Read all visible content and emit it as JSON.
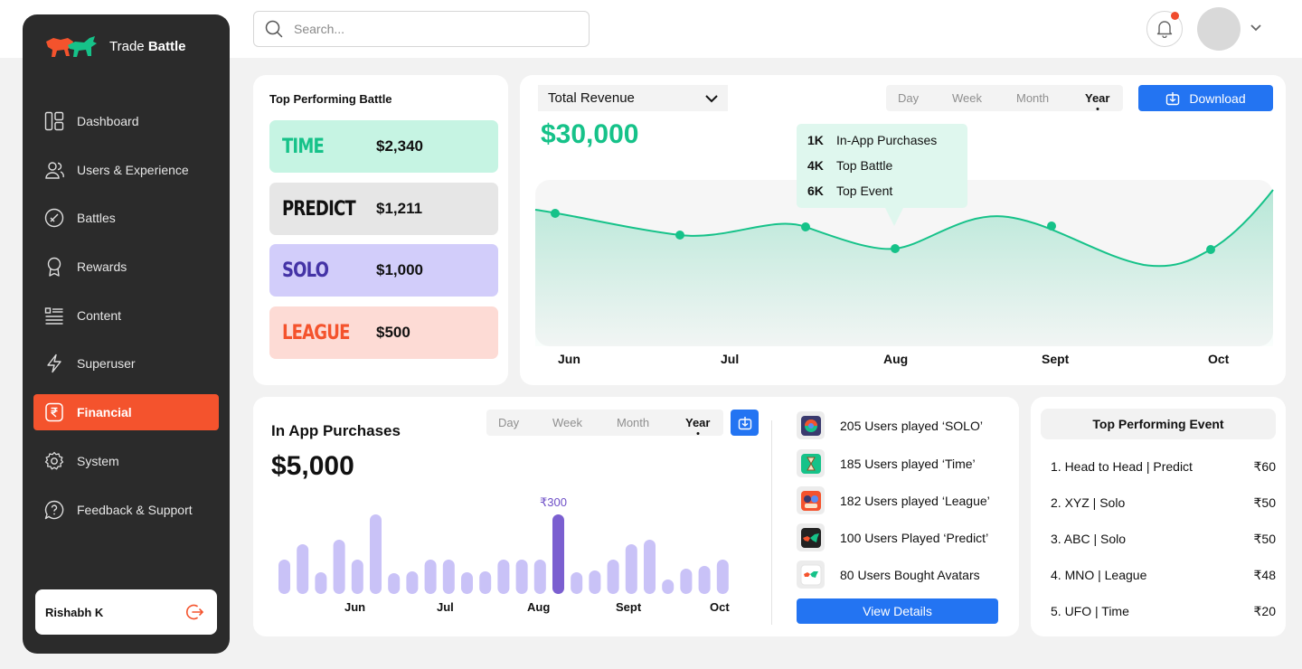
{
  "colors": {
    "accent": "#f4532d",
    "green": "#16c289",
    "blue": "#2374f2",
    "purple": "#c9c2f7",
    "purple_dark": "#7b5fd0"
  },
  "header": {
    "search_placeholder": "Search..."
  },
  "brand": {
    "name_light": "Trade",
    "name_bold": "Battle"
  },
  "sidebar": {
    "items": [
      {
        "label": "Dashboard",
        "icon": "dashboard-icon"
      },
      {
        "label": "Users & Experience",
        "icon": "users-icon"
      },
      {
        "label": "Battles",
        "icon": "battles-icon"
      },
      {
        "label": "Rewards",
        "icon": "rewards-icon"
      },
      {
        "label": "Content",
        "icon": "content-icon"
      },
      {
        "label": "Superuser",
        "icon": "lightning-icon"
      },
      {
        "label": "Financial",
        "icon": "rupee-icon",
        "active": true
      },
      {
        "label": "System",
        "icon": "gear-icon"
      },
      {
        "label": "Feedback & Support",
        "icon": "help-icon"
      }
    ],
    "user_name": "Rishabh K"
  },
  "top_battle": {
    "title": "Top Performing Battle",
    "rows": [
      {
        "name": "TIME",
        "amount": "$2,340"
      },
      {
        "name": "PREDICT",
        "amount": "$1,211"
      },
      {
        "name": "SOLO",
        "amount": "$1,000"
      },
      {
        "name": "LEAGUE",
        "amount": "$500"
      }
    ]
  },
  "revenue": {
    "dropdown": "Total Revenue",
    "periods": [
      "Day",
      "Week",
      "Month",
      "Year"
    ],
    "selected_period": "Year",
    "download_label": "Download",
    "total": "$30,000",
    "tooltip": [
      {
        "value": "1K",
        "label": "In-App Purchases"
      },
      {
        "value": "4K",
        "label": "Top Battle"
      },
      {
        "value": "6K",
        "label": "Top Event"
      }
    ],
    "months": [
      "Jun",
      "Jul",
      "Aug",
      "Sept",
      "Oct"
    ]
  },
  "in_app": {
    "title": "In App Purchases",
    "periods": [
      "Day",
      "Week",
      "Month",
      "Year"
    ],
    "selected_period": "Year",
    "total": "$5,000",
    "highlight_label": "₹300",
    "months": [
      "Jun",
      "Jul",
      "Aug",
      "Sept",
      "Oct"
    ],
    "bar_values": [
      38,
      55,
      24,
      60,
      38,
      88,
      23,
      25,
      38,
      38,
      24,
      25,
      38,
      38,
      38,
      88,
      24,
      26,
      38,
      55,
      60,
      16,
      28,
      31,
      38
    ],
    "highlight_index": 15,
    "users": [
      {
        "text": "205 Users played ‘SOLO’",
        "icon": "solo-thumb-icon"
      },
      {
        "text": "185 Users played ‘Time’",
        "icon": "time-thumb-icon"
      },
      {
        "text": "182 Users played ‘League’",
        "icon": "league-thumb-icon"
      },
      {
        "text": "100 Users Played ‘Predict’",
        "icon": "predict-thumb-icon"
      },
      {
        "text": "80 Users Bought Avatars",
        "icon": "avatar-thumb-icon"
      }
    ],
    "view_details_label": "View Details"
  },
  "top_event": {
    "title": "Top Performing Event",
    "events": [
      {
        "name": "1. Head to Head | Predict",
        "amount": "₹60"
      },
      {
        "name": "2. XYZ | Solo",
        "amount": "₹50"
      },
      {
        "name": "3. ABC | Solo",
        "amount": "₹50"
      },
      {
        "name": "4. MNO | League",
        "amount": "₹48"
      },
      {
        "name": "5. UFO | Time",
        "amount": "₹20"
      }
    ]
  }
}
